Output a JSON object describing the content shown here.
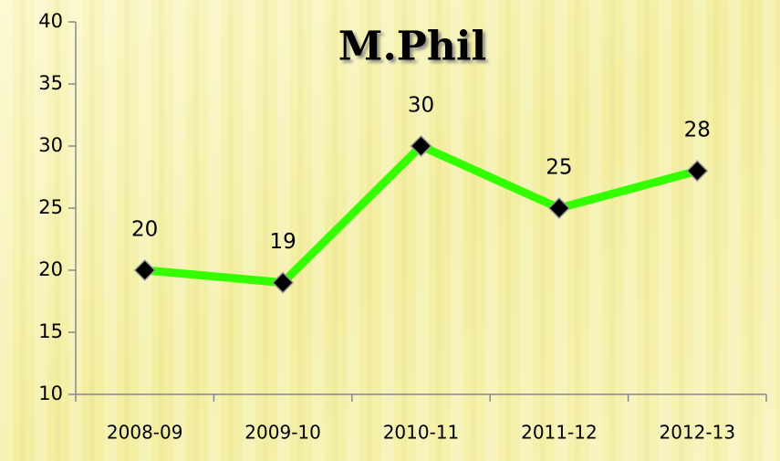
{
  "chart_data": {
    "type": "line",
    "title": "M.Phil",
    "categories": [
      "2008-09",
      "2009-10",
      "2010-11",
      "2011-12",
      "2012-13"
    ],
    "values": [
      20,
      19,
      30,
      25,
      28
    ],
    "color": "#33ff00",
    "marker_color": "#000000",
    "ylim": [
      10,
      40
    ],
    "yticks": [
      10,
      15,
      20,
      25,
      30,
      35,
      40
    ]
  }
}
